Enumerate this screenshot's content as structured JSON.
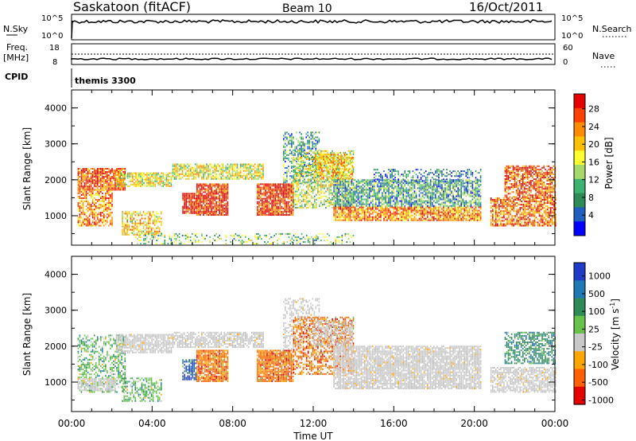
{
  "header": {
    "station": "Saskatoon (fitACF)",
    "beam": "Beam 10",
    "date": "16/Oct/2011"
  },
  "status_panel": {
    "left_label": "N.Sky",
    "left_ticks": [
      "10^5",
      "10^0"
    ],
    "right_ticks": [
      "10^5",
      "10^0"
    ],
    "right_label": "N.Search",
    "right_label_style": "dotted"
  },
  "freq_panel": {
    "left_label_1": "Freq.",
    "left_label_2": "[MHz]",
    "left_ticks": [
      "18",
      "8"
    ],
    "right_ticks": [
      "60",
      "0"
    ],
    "right_label": "Nave",
    "right_label_style": "dotted"
  },
  "cpid": {
    "label": "CPID",
    "program": "themis 3300"
  },
  "chart_data": [
    {
      "type": "heatmap",
      "panel": "power",
      "ylabel": "Slant Range [km]",
      "yticks": [
        "4000",
        "3000",
        "2000",
        "1000"
      ],
      "ylim": [
        180,
        4500
      ],
      "xlim": [
        0,
        24
      ],
      "colorbar": {
        "label": "Power [dB]",
        "ticks": [
          "28",
          "24",
          "20",
          "16",
          "12",
          "8",
          "4"
        ],
        "colors": [
          "#e60000",
          "#ff4000",
          "#ff8c00",
          "#ffc000",
          "#ffff30",
          "#a6d96a",
          "#3cb371",
          "#2e8b57",
          "#1f5fbf",
          "#0000ff"
        ]
      },
      "echo_regions": [
        {
          "t": [
            0.3,
            2.7
          ],
          "r": [
            1700,
            2300
          ],
          "level": 0.85,
          "density": 0.85
        },
        {
          "t": [
            0.3,
            2.0
          ],
          "r": [
            700,
            1700
          ],
          "level": 0.75,
          "density": 0.7
        },
        {
          "t": [
            2.5,
            4.5
          ],
          "r": [
            450,
            1100
          ],
          "level": 0.6,
          "density": 0.65
        },
        {
          "t": [
            2.2,
            5.0
          ],
          "r": [
            1800,
            2200
          ],
          "level": 0.55,
          "density": 0.8
        },
        {
          "t": [
            5.0,
            9.5
          ],
          "r": [
            2000,
            2450
          ],
          "level": 0.55,
          "density": 0.75
        },
        {
          "t": [
            5.5,
            6.2
          ],
          "r": [
            1050,
            1600
          ],
          "level": 0.95,
          "density": 0.85
        },
        {
          "t": [
            6.2,
            7.8
          ],
          "r": [
            1000,
            1900
          ],
          "level": 0.9,
          "density": 0.9
        },
        {
          "t": [
            9.2,
            11.0
          ],
          "r": [
            1000,
            1900
          ],
          "level": 0.9,
          "density": 0.9
        },
        {
          "t": [
            10.5,
            12.3
          ],
          "r": [
            1900,
            3300
          ],
          "level": 0.3,
          "density": 0.45
        },
        {
          "t": [
            11.0,
            14.0
          ],
          "r": [
            1200,
            2800
          ],
          "level": 0.5,
          "density": 0.55
        },
        {
          "t": [
            12.0,
            14.0
          ],
          "r": [
            2000,
            2700
          ],
          "level": 0.65,
          "density": 0.7
        },
        {
          "t": [
            13.0,
            20.3
          ],
          "r": [
            850,
            1250
          ],
          "level": 0.75,
          "density": 0.85
        },
        {
          "t": [
            13.0,
            20.3
          ],
          "r": [
            1250,
            2000
          ],
          "level": 0.3,
          "density": 0.75
        },
        {
          "t": [
            15.0,
            20.3
          ],
          "r": [
            1900,
            2300
          ],
          "level": 0.25,
          "density": 0.4
        },
        {
          "t": [
            20.8,
            24.0
          ],
          "r": [
            700,
            1500
          ],
          "level": 0.8,
          "density": 0.75
        },
        {
          "t": [
            21.5,
            24.0
          ],
          "r": [
            1500,
            2400
          ],
          "level": 0.85,
          "density": 0.7
        },
        {
          "t": [
            3.0,
            14.0
          ],
          "r": [
            200,
            500
          ],
          "level": 0.4,
          "density": 0.3
        }
      ]
    },
    {
      "type": "heatmap",
      "panel": "velocity",
      "ylabel": "Slant Range [km]",
      "yticks": [
        "4000",
        "3000",
        "2000",
        "1000"
      ],
      "ylim": [
        180,
        4500
      ],
      "xlim": [
        0,
        24
      ],
      "xticks": [
        "00:00",
        "04:00",
        "08:00",
        "12:00",
        "16:00",
        "20:00",
        "00:00"
      ],
      "xlabel": "Time UT",
      "colorbar": {
        "label": "Velocity [m s",
        "label_exponent": "-1",
        "label_close": "]",
        "ticks": [
          "1000",
          "500",
          "100",
          "25",
          "-25",
          "-100",
          "-500",
          "-1000"
        ],
        "colors": [
          "#1e3cc8",
          "#1e78b4",
          "#2e8b57",
          "#66c24a",
          "#c8c8c8",
          "#ffa500",
          "#ff6000",
          "#e60000"
        ]
      },
      "echo_regions": [
        {
          "t": [
            0.3,
            2.7
          ],
          "r": [
            700,
            2300
          ],
          "kind": "green",
          "density": 0.45
        },
        {
          "t": [
            0.3,
            2.2
          ],
          "r": [
            750,
            1100
          ],
          "kind": "gray",
          "density": 0.7
        },
        {
          "t": [
            2.2,
            5.0
          ],
          "r": [
            1800,
            2300
          ],
          "kind": "gray",
          "density": 0.8
        },
        {
          "t": [
            5.0,
            9.5
          ],
          "r": [
            1950,
            2400
          ],
          "kind": "gray",
          "density": 0.75
        },
        {
          "t": [
            2.5,
            4.5
          ],
          "r": [
            450,
            1100
          ],
          "kind": "green",
          "density": 0.55
        },
        {
          "t": [
            5.5,
            6.2
          ],
          "r": [
            1050,
            1600
          ],
          "kind": "blue",
          "density": 0.7
        },
        {
          "t": [
            6.2,
            7.8
          ],
          "r": [
            1000,
            1900
          ],
          "kind": "orange",
          "density": 0.85
        },
        {
          "t": [
            9.2,
            11.0
          ],
          "r": [
            1000,
            1900
          ],
          "kind": "orange",
          "density": 0.9
        },
        {
          "t": [
            10.5,
            12.3
          ],
          "r": [
            1900,
            3300
          ],
          "kind": "gray",
          "density": 0.4
        },
        {
          "t": [
            11.0,
            14.0
          ],
          "r": [
            1200,
            2800
          ],
          "kind": "orange",
          "density": 0.5
        },
        {
          "t": [
            12.0,
            14.0
          ],
          "r": [
            2000,
            2700
          ],
          "kind": "gray",
          "density": 0.6
        },
        {
          "t": [
            13.0,
            20.3
          ],
          "r": [
            800,
            2000
          ],
          "kind": "gray",
          "density": 0.85
        },
        {
          "t": [
            20.8,
            24.0
          ],
          "r": [
            700,
            1400
          ],
          "kind": "gray",
          "density": 0.75
        },
        {
          "t": [
            21.5,
            24.0
          ],
          "r": [
            1500,
            2400
          ],
          "kind": "teal",
          "density": 0.6
        }
      ]
    }
  ]
}
